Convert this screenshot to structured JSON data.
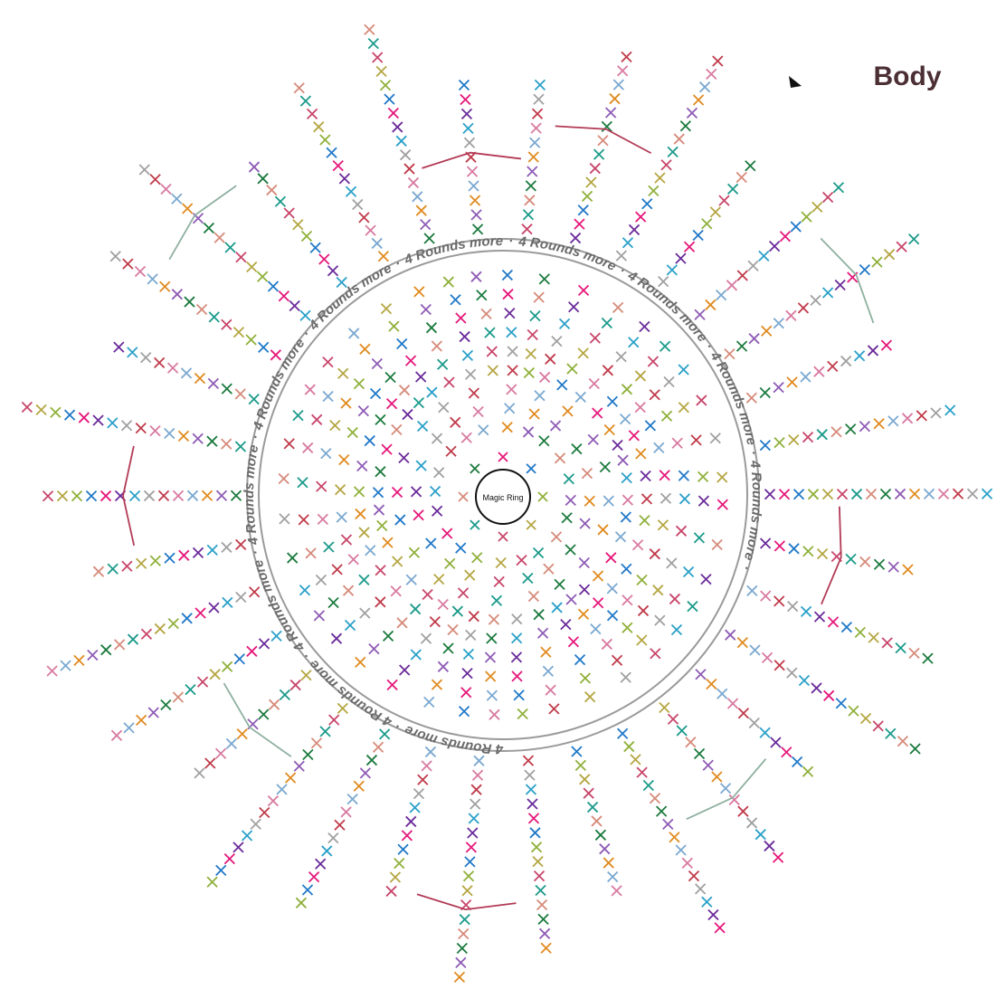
{
  "title": "Body",
  "center_label": "Magic Ring",
  "ring_text": "4 Rounds more",
  "ring_separator": "·"
}
